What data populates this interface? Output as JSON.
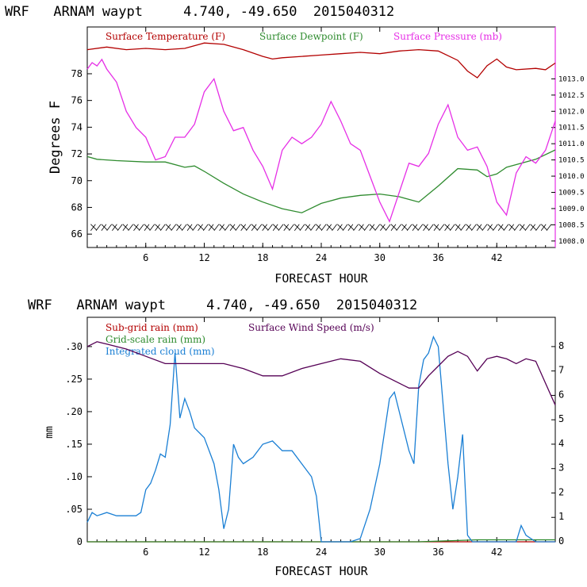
{
  "chart_data": [
    {
      "type": "line",
      "title": "WRF   ARNAM waypt     4.740, -49.650  2015040312",
      "xlabel": "FORECAST HOUR",
      "ylabel": "Degrees F",
      "xlim": [
        0,
        48
      ],
      "ylim": [
        65,
        81.5
      ],
      "y2lim": [
        1007.8,
        1014.6
      ],
      "xticks": [
        "6",
        "12",
        "18",
        "24",
        "30",
        "36",
        "42"
      ],
      "yticks": [
        "66",
        "68",
        "70",
        "72",
        "74",
        "76",
        "78"
      ],
      "y2ticks": [
        "1008.0",
        "1008.5",
        "1009.0",
        "1009.5",
        "1010.0",
        "1010.5",
        "1011.0",
        "1011.5",
        "1012.0",
        "1012.5",
        "1013.0"
      ],
      "wind_barbs": true,
      "colors": {
        "temperature": "#b30000",
        "dewpoint": "#2e8b2e",
        "pressure": "#e62ee6",
        "wind": "#000000"
      },
      "series": [
        {
          "name": "Surface Temperature (F)",
          "axis": "left",
          "x": [
            0,
            2,
            4,
            6,
            8,
            10,
            12,
            14,
            16,
            18,
            19,
            20,
            22,
            24,
            26,
            28,
            30,
            32,
            34,
            36,
            38,
            39,
            40,
            41,
            42,
            43,
            44,
            46,
            47,
            48
          ],
          "y": [
            79.8,
            80.0,
            79.8,
            79.9,
            79.8,
            79.9,
            80.3,
            80.2,
            79.8,
            79.3,
            79.1,
            79.2,
            79.3,
            79.4,
            79.5,
            79.6,
            79.5,
            79.7,
            79.8,
            79.7,
            79.0,
            78.2,
            77.7,
            78.6,
            79.1,
            78.5,
            78.3,
            78.4,
            78.3,
            78.8
          ]
        },
        {
          "name": "Surface Dewpoint (F)",
          "axis": "left",
          "x": [
            0,
            1,
            3,
            6,
            8,
            10,
            11,
            12,
            14,
            16,
            18,
            20,
            22,
            24,
            26,
            28,
            30,
            32,
            34,
            36,
            38,
            40,
            41,
            42,
            43,
            44,
            46,
            48
          ],
          "y": [
            71.8,
            71.6,
            71.5,
            71.4,
            71.4,
            71.0,
            71.1,
            70.7,
            69.8,
            69.0,
            68.4,
            67.9,
            67.6,
            68.3,
            68.7,
            68.9,
            69.0,
            68.8,
            68.4,
            69.6,
            70.9,
            70.8,
            70.3,
            70.5,
            71.0,
            71.2,
            71.6,
            72.3
          ]
        },
        {
          "name": "Surface Pressure (mb)",
          "axis": "right",
          "x": [
            0,
            0.5,
            1,
            1.5,
            2,
            3,
            4,
            5,
            6,
            7,
            8,
            9,
            10,
            11,
            12,
            13,
            14,
            15,
            16,
            17,
            18,
            19,
            20,
            21,
            22,
            23,
            24,
            25,
            26,
            27,
            28,
            29,
            30,
            31,
            32,
            33,
            34,
            35,
            36,
            37,
            38,
            39,
            40,
            41,
            42,
            43,
            44,
            45,
            46,
            47,
            48
          ],
          "y": [
            1013.3,
            1013.5,
            1013.4,
            1013.6,
            1013.3,
            1012.9,
            1012.0,
            1011.5,
            1011.2,
            1010.5,
            1010.6,
            1011.2,
            1011.2,
            1011.6,
            1012.6,
            1013.0,
            1012.0,
            1011.4,
            1011.5,
            1010.8,
            1010.3,
            1009.6,
            1010.8,
            1011.2,
            1011.0,
            1011.2,
            1011.6,
            1012.3,
            1011.7,
            1011.0,
            1010.8,
            1010.0,
            1009.2,
            1008.6,
            1009.5,
            1010.4,
            1010.3,
            1010.7,
            1011.6,
            1012.2,
            1011.2,
            1010.8,
            1010.9,
            1010.3,
            1009.2,
            1008.8,
            1010.1,
            1010.6,
            1010.4,
            1010.8,
            1011.7
          ]
        }
      ]
    },
    {
      "type": "line",
      "title": "WRF   ARNAM waypt     4.740, -49.650  2015040312",
      "xlabel": "FORECAST HOUR",
      "ylabel": "mm",
      "xlim": [
        0,
        48
      ],
      "ylim": [
        0,
        0.345
      ],
      "y2lim": [
        0,
        9.2
      ],
      "xticks": [
        "6",
        "12",
        "18",
        "24",
        "30",
        "36",
        "42"
      ],
      "yticks": [
        "0",
        ".05",
        ".10",
        ".15",
        ".20",
        ".25",
        ".30"
      ],
      "y2ticks": [
        "0",
        "1",
        "2",
        "3",
        "4",
        "5",
        "6",
        "7",
        "8"
      ],
      "colors": {
        "subgrid": "#b30000",
        "gridscale": "#2e8b2e",
        "cloud": "#1a7fd4",
        "wind": "#550055"
      },
      "series": [
        {
          "name": "Sub-grid rain (mm)",
          "axis": "left",
          "x": [
            0,
            48
          ],
          "y": [
            0,
            0
          ]
        },
        {
          "name": "Grid-scale rain (mm)",
          "axis": "left",
          "x": [
            0,
            34,
            36,
            38,
            40,
            48
          ],
          "y": [
            0,
            0,
            0.001,
            0.002,
            0.003,
            0.003
          ]
        },
        {
          "name": "Integrated cloud (mm)",
          "axis": "left",
          "x": [
            0,
            0.5,
            1,
            2,
            3,
            4,
            5,
            5.5,
            6,
            6.5,
            7,
            7.5,
            8,
            8.5,
            9,
            9.5,
            10,
            10.5,
            11,
            12,
            13,
            13.5,
            14,
            14.5,
            15,
            15.5,
            16,
            17,
            18,
            19,
            20,
            21,
            22,
            23,
            23.5,
            24,
            27,
            28,
            29,
            30,
            31,
            31.5,
            32,
            33,
            33.5,
            34,
            34.5,
            35,
            35.5,
            36,
            37,
            37.5,
            38,
            38.5,
            39,
            39.5,
            40,
            44,
            44.5,
            45,
            46,
            48
          ],
          "y": [
            0.03,
            0.045,
            0.04,
            0.045,
            0.04,
            0.04,
            0.04,
            0.045,
            0.08,
            0.09,
            0.11,
            0.135,
            0.13,
            0.18,
            0.29,
            0.19,
            0.22,
            0.2,
            0.175,
            0.16,
            0.12,
            0.08,
            0.02,
            0.05,
            0.15,
            0.13,
            0.12,
            0.13,
            0.15,
            0.155,
            0.14,
            0.14,
            0.12,
            0.1,
            0.07,
            0.0,
            0.0,
            0.005,
            0.05,
            0.12,
            0.22,
            0.23,
            0.2,
            0.14,
            0.12,
            0.24,
            0.28,
            0.29,
            0.315,
            0.3,
            0.12,
            0.05,
            0.1,
            0.165,
            0.01,
            0.0,
            0.0,
            0.0,
            0.025,
            0.01,
            0.0,
            0.0
          ]
        },
        {
          "name": "Surface Wind Speed (m/s)",
          "axis": "right",
          "x": [
            0,
            1,
            2,
            4,
            6,
            8,
            10,
            12,
            14,
            16,
            18,
            20,
            22,
            24,
            26,
            28,
            30,
            32,
            33,
            34,
            35,
            36,
            37,
            38,
            39,
            40,
            41,
            42,
            43,
            44,
            45,
            46,
            47,
            48
          ],
          "y": [
            8.0,
            8.2,
            8.1,
            7.9,
            7.6,
            7.3,
            7.3,
            7.3,
            7.3,
            7.1,
            6.8,
            6.8,
            7.1,
            7.3,
            7.5,
            7.4,
            6.9,
            6.5,
            6.3,
            6.3,
            6.8,
            7.2,
            7.6,
            7.8,
            7.6,
            7.0,
            7.5,
            7.6,
            7.5,
            7.3,
            7.5,
            7.4,
            6.5,
            5.6
          ]
        }
      ]
    }
  ]
}
